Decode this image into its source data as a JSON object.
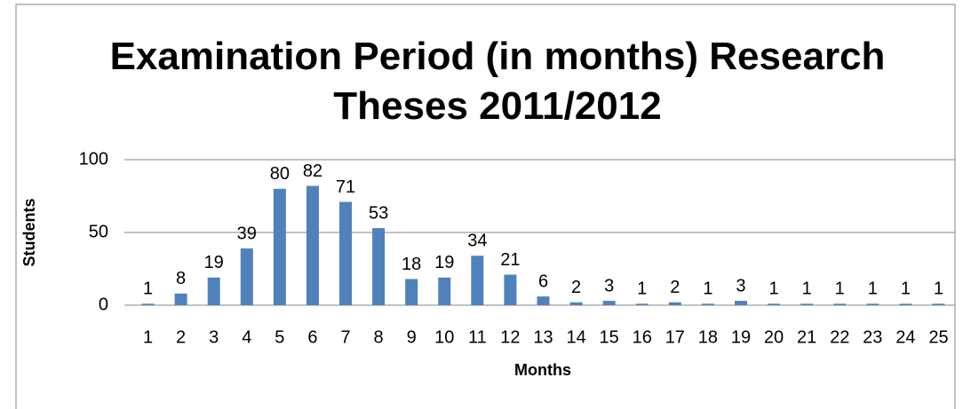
{
  "chart_data": {
    "type": "bar",
    "title": "Examination Period  (in months) Research Theses 2011/2012",
    "x_label": "Months",
    "y_label": "Students",
    "categories": [
      "1",
      "2",
      "3",
      "4",
      "5",
      "6",
      "7",
      "8",
      "9",
      "10",
      "11",
      "12",
      "13",
      "14",
      "15",
      "16",
      "17",
      "18",
      "19",
      "20",
      "21",
      "22",
      "23",
      "24",
      "25"
    ],
    "values": [
      1,
      8,
      19,
      39,
      80,
      82,
      71,
      53,
      18,
      19,
      34,
      21,
      6,
      2,
      3,
      1,
      2,
      1,
      3,
      1,
      1,
      1,
      1,
      1,
      1
    ],
    "color": "#4f81bd",
    "ylim": [
      0,
      100
    ],
    "yticks": [
      0,
      50,
      100
    ],
    "grid": true
  }
}
